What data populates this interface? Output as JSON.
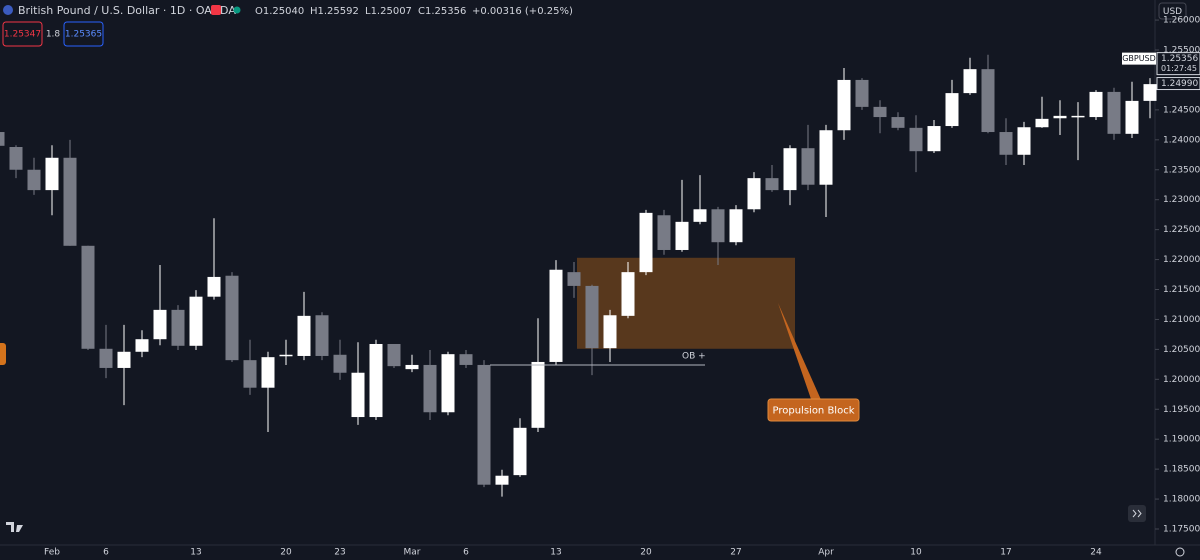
{
  "header": {
    "title": "British Pound / U.S. Dollar · 1D · OANDA",
    "open": "O1.25040",
    "high": "H1.25592",
    "low": "L1.25007",
    "close": "C1.25356",
    "change": "+0.00316 (+0.25%)",
    "bid": "1.25347",
    "spread": "1.8",
    "ask": "1.25365",
    "currency": "USD"
  },
  "chart_data": {
    "type": "candlestick",
    "categories": [
      null,
      null,
      null,
      "Feb",
      null,
      null,
      "6",
      null,
      null,
      null,
      null,
      "13",
      null,
      null,
      null,
      null,
      "20",
      null,
      null,
      "23",
      null,
      null,
      null,
      "Mar",
      null,
      null,
      "6",
      null,
      null,
      null,
      null,
      "13",
      null,
      null,
      null,
      null,
      "20",
      null,
      null,
      null,
      null,
      "27",
      null,
      null,
      null,
      null,
      "Apr",
      null,
      null,
      null,
      null,
      "10",
      null,
      null,
      null,
      null,
      "17",
      null,
      null,
      null,
      null,
      "24",
      null,
      null,
      null
    ],
    "open": [
      1.2413,
      1.2388,
      1.235,
      1.2316,
      1.237,
      1.2223,
      1.2051,
      1.2019,
      1.2046,
      1.2067,
      1.2116,
      1.2056,
      1.2138,
      1.2173,
      1.2032,
      1.1986,
      1.2039,
      1.2039,
      1.2107,
      1.2041,
      1.1937,
      1.1937,
      1.2059,
      1.2017,
      1.2024,
      1.1945,
      1.2042,
      1.2024,
      1.1824,
      1.184,
      1.1919,
      1.2029,
      1.2179,
      1.2156,
      1.2052,
      1.2106,
      1.2179,
      1.2274,
      1.2216,
      1.2263,
      1.2284,
      1.2229,
      1.2284,
      1.2336,
      1.2316,
      1.2386,
      1.2325,
      1.2416,
      1.25,
      1.2455,
      1.2438,
      1.242,
      1.2381,
      1.2423,
      1.2478,
      1.2518,
      1.2413,
      1.2375,
      1.2421,
      1.2436,
      1.2438,
      1.2438,
      1.248,
      1.241,
      1.2465
    ],
    "high": [
      1.242,
      1.2391,
      1.237,
      1.2391,
      1.24,
      1.2223,
      1.2091,
      1.2091,
      1.2082,
      1.2191,
      1.2124,
      1.2149,
      1.2269,
      1.2179,
      1.2066,
      1.2046,
      1.2066,
      1.2146,
      1.2112,
      1.2066,
      1.2062,
      1.2066,
      1.2059,
      1.2041,
      1.2049,
      1.2046,
      1.2049,
      1.2032,
      1.1849,
      1.1935,
      1.2102,
      1.2199,
      1.2196,
      1.2158,
      1.2116,
      1.2196,
      1.2283,
      1.2283,
      1.2333,
      1.2341,
      1.2288,
      1.2291,
      1.2346,
      1.2358,
      1.2391,
      1.2425,
      1.2425,
      1.252,
      1.2503,
      1.2466,
      1.2446,
      1.2441,
      1.2433,
      1.25,
      1.2537,
      1.2542,
      1.2436,
      1.243,
      1.2472,
      1.2466,
      1.2463,
      1.2483,
      1.2487,
      1.2497,
      1.2503
    ],
    "low": [
      1.2383,
      1.2336,
      1.2308,
      1.2274,
      1.2223,
      1.2049,
      1.2002,
      1.1957,
      1.2037,
      1.2057,
      1.2049,
      1.2049,
      1.2133,
      1.2029,
      1.1974,
      1.1912,
      1.2024,
      1.2032,
      1.2032,
      1.1999,
      1.1924,
      1.1932,
      1.2019,
      1.2012,
      1.1932,
      1.194,
      1.2019,
      1.182,
      1.1804,
      1.1837,
      1.1912,
      1.2024,
      1.2136,
      1.2007,
      1.2029,
      1.2102,
      1.2174,
      1.2208,
      1.2213,
      1.2259,
      1.2191,
      1.2224,
      1.2279,
      1.2313,
      1.2291,
      1.2316,
      1.2271,
      1.24,
      1.245,
      1.2411,
      1.2416,
      1.2346,
      1.2378,
      1.242,
      1.2475,
      1.2411,
      1.2358,
      1.2358,
      1.242,
      1.2408,
      1.2366,
      1.2433,
      1.24,
      1.2403,
      1.2436
    ],
    "close": [
      1.239,
      1.235,
      1.2316,
      1.237,
      1.2223,
      1.2051,
      1.2019,
      1.2046,
      1.2067,
      1.2116,
      1.2056,
      1.2138,
      1.2171,
      1.2032,
      1.1986,
      1.2037,
      1.2041,
      1.2106,
      1.2039,
      1.2011,
      1.2011,
      1.2059,
      1.2022,
      1.2024,
      1.1945,
      1.2042,
      1.2024,
      1.1824,
      1.1839,
      1.1919,
      1.2029,
      1.2183,
      1.2156,
      1.2052,
      1.2107,
      1.2179,
      1.2278,
      1.2216,
      1.2263,
      1.2284,
      1.2229,
      1.2284,
      1.2336,
      1.2316,
      1.2386,
      1.2325,
      1.2416,
      1.25,
      1.2455,
      1.2438,
      1.242,
      1.2381,
      1.2423,
      1.2478,
      1.2518,
      1.2413,
      1.2375,
      1.2421,
      1.2435,
      1.244,
      1.244,
      1.248,
      1.241,
      1.2465,
      1.2493
    ],
    "up_color": "#ffffff",
    "down_color": "#787b86",
    "ylim": [
      1.17233,
      1.26335
    ],
    "yticks": [
      {
        "value": 1.26,
        "label": "1.26000"
      },
      {
        "value": 1.255,
        "label": "1.25500"
      },
      {
        "value": 1.245,
        "label": "1.24500"
      },
      {
        "value": 1.24,
        "label": "1.24000"
      },
      {
        "value": 1.235,
        "label": "1.23500"
      },
      {
        "value": 1.23,
        "label": "1.23000"
      },
      {
        "value": 1.225,
        "label": "1.22500"
      },
      {
        "value": 1.22,
        "label": "1.22000"
      },
      {
        "value": 1.215,
        "label": "1.21500"
      },
      {
        "value": 1.21,
        "label": "1.21000"
      },
      {
        "value": 1.205,
        "label": "1.20500"
      },
      {
        "value": 1.2,
        "label": "1.20000"
      },
      {
        "value": 1.195,
        "label": "1.19500"
      },
      {
        "value": 1.19,
        "label": "1.19000"
      },
      {
        "value": 1.185,
        "label": "1.18500"
      },
      {
        "value": 1.18,
        "label": "1.18000"
      },
      {
        "value": 1.175,
        "label": "1.17500"
      }
    ],
    "grid": false,
    "price_tag": {
      "symbol": "GBPUSD",
      "value": 1.25356,
      "countdown": "01:27:45"
    },
    "level_tag": {
      "value": 1.2499,
      "label": "1.24990"
    },
    "zone": {
      "top": 1.2203,
      "bottom": 1.2051,
      "color": "#5c3a1e"
    },
    "level_line": {
      "label": "OB +",
      "value": 1.2024
    },
    "callout": "Propulsion Block"
  }
}
